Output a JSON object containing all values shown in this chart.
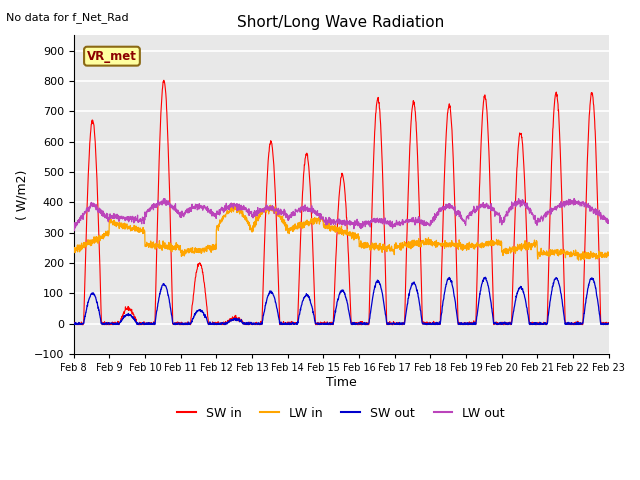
{
  "title": "Short/Long Wave Radiation",
  "subtitle": "No data for f_Net_Rad",
  "ylabel": "( W/m2)",
  "xlabel": "Time",
  "station_label": "VR_met",
  "ylim": [
    -100,
    950
  ],
  "yticks": [
    -100,
    0,
    100,
    200,
    300,
    400,
    500,
    600,
    700,
    800,
    900
  ],
  "n_days": 15,
  "day_start": 8,
  "bg_color": "#E8E8E8",
  "grid_color": "#FFFFFF",
  "sw_in_color": "#FF0000",
  "lw_in_color": "#FFA500",
  "sw_out_color": "#0000CC",
  "lw_out_color": "#BB44BB",
  "day_amps_sw_in": [
    670,
    50,
    800,
    200,
    20,
    600,
    560,
    490,
    740,
    730,
    720,
    750,
    630,
    760,
    760
  ],
  "day_amps_sw_out": [
    100,
    30,
    130,
    45,
    15,
    105,
    95,
    110,
    140,
    135,
    150,
    150,
    120,
    150,
    150
  ]
}
